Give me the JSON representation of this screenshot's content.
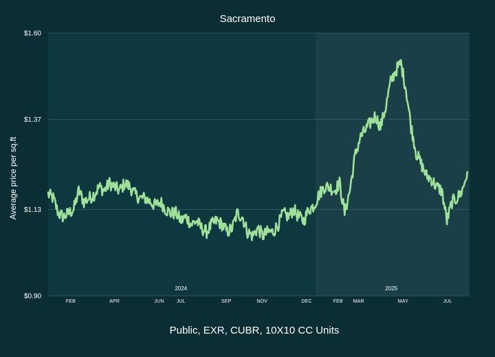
{
  "chart_data": {
    "type": "line",
    "title": "Sacramento",
    "ylabel": "Average price per sq.ft",
    "xlabel": "",
    "footer": "Public, EXR, CUBR, 10X10 CC Units",
    "ylim": [
      0.9,
      1.6
    ],
    "yticks": [
      {
        "value": 0.9,
        "label": "$0.90"
      },
      {
        "value": 1.13,
        "label": "$1.13"
      },
      {
        "value": 1.37,
        "label": "$1.37"
      },
      {
        "value": 1.6,
        "label": "$1.60"
      }
    ],
    "xlim": [
      "2024-01-01",
      "2025-07-31"
    ],
    "xticks": [
      {
        "date": "2024-02-01",
        "label": "FEB"
      },
      {
        "date": "2024-04-01",
        "label": "APR"
      },
      {
        "date": "2024-06-01",
        "label": "JUN"
      },
      {
        "date": "2024-07-01",
        "label": "JUL"
      },
      {
        "date": "2024-09-01",
        "label": "SEP"
      },
      {
        "date": "2024-10-20",
        "label": "NOV"
      },
      {
        "date": "2024-12-20",
        "label": "DEC"
      },
      {
        "date": "2025-02-01",
        "label": "FEB"
      },
      {
        "date": "2025-03-01",
        "label": "MAR"
      },
      {
        "date": "2025-05-01",
        "label": "MAY"
      },
      {
        "date": "2025-07-01",
        "label": "JUL"
      }
    ],
    "year_labels": [
      {
        "date": "2024-07-01",
        "label": "2024"
      },
      {
        "date": "2025-04-15",
        "label": "2025"
      }
    ],
    "shaded_region": {
      "from": "2025-01-01",
      "to": "2025-07-31"
    },
    "grid": true,
    "legend": "none",
    "colors": {
      "line": "#9fe09a",
      "background": "#0b2e35",
      "plot": "#0e3840",
      "shade": "#1a3f46",
      "grid": "#3c5f64"
    },
    "series": [
      {
        "x": [
          "2024-01-01",
          "2024-01-08",
          "2024-01-15",
          "2024-01-22",
          "2024-01-29",
          "2024-02-05",
          "2024-02-12",
          "2024-02-19",
          "2024-02-26",
          "2024-03-04",
          "2024-03-11",
          "2024-03-18",
          "2024-03-25",
          "2024-04-01",
          "2024-04-08",
          "2024-04-15",
          "2024-04-22",
          "2024-04-29",
          "2024-05-06",
          "2024-05-13",
          "2024-05-20",
          "2024-05-27",
          "2024-06-03",
          "2024-06-10",
          "2024-06-17",
          "2024-06-24",
          "2024-07-01",
          "2024-07-08",
          "2024-07-15",
          "2024-07-22",
          "2024-07-29",
          "2024-08-05",
          "2024-08-12",
          "2024-08-19",
          "2024-08-26",
          "2024-09-02",
          "2024-09-09",
          "2024-09-16",
          "2024-09-23",
          "2024-09-30",
          "2024-10-07",
          "2024-10-14",
          "2024-10-21",
          "2024-10-28",
          "2024-11-04",
          "2024-11-11",
          "2024-11-18",
          "2024-11-25",
          "2024-12-02",
          "2024-12-09",
          "2024-12-16",
          "2024-12-23",
          "2024-12-30",
          "2025-01-06",
          "2025-01-13",
          "2025-01-20",
          "2025-01-27",
          "2025-02-03",
          "2025-02-10",
          "2025-02-17",
          "2025-02-24",
          "2025-03-03",
          "2025-03-10",
          "2025-03-17",
          "2025-03-24",
          "2025-03-31",
          "2025-04-07",
          "2025-04-14",
          "2025-04-21",
          "2025-04-28",
          "2025-05-05",
          "2025-05-12",
          "2025-05-19",
          "2025-05-26",
          "2025-06-02",
          "2025-06-09",
          "2025-06-16",
          "2025-06-23",
          "2025-06-30",
          "2025-07-07",
          "2025-07-14",
          "2025-07-21",
          "2025-07-28"
        ],
        "values": [
          1.17,
          1.16,
          1.12,
          1.11,
          1.12,
          1.13,
          1.18,
          1.15,
          1.16,
          1.17,
          1.19,
          1.18,
          1.2,
          1.19,
          1.18,
          1.2,
          1.19,
          1.17,
          1.16,
          1.16,
          1.15,
          1.14,
          1.15,
          1.13,
          1.12,
          1.12,
          1.1,
          1.11,
          1.09,
          1.1,
          1.08,
          1.07,
          1.09,
          1.1,
          1.09,
          1.07,
          1.08,
          1.12,
          1.11,
          1.07,
          1.06,
          1.08,
          1.06,
          1.07,
          1.07,
          1.09,
          1.12,
          1.11,
          1.13,
          1.11,
          1.1,
          1.13,
          1.14,
          1.17,
          1.19,
          1.19,
          1.18,
          1.2,
          1.12,
          1.18,
          1.27,
          1.32,
          1.34,
          1.36,
          1.38,
          1.35,
          1.4,
          1.47,
          1.5,
          1.52,
          1.45,
          1.35,
          1.28,
          1.25,
          1.22,
          1.21,
          1.19,
          1.18,
          1.1,
          1.15,
          1.16,
          1.18,
          1.23
        ]
      }
    ]
  }
}
